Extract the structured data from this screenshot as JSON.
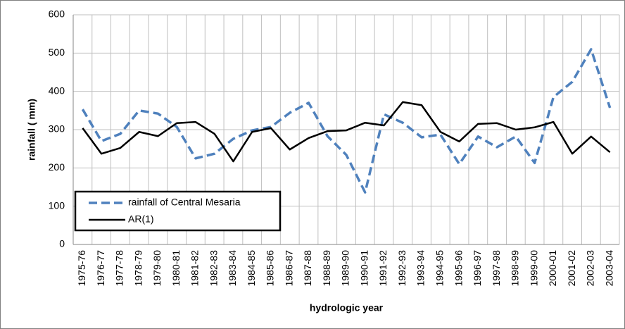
{
  "chart_data": {
    "type": "line",
    "x_label": "hydrologic year",
    "y_label": "rainfall ( mm)",
    "categories": [
      "1975-76",
      "1976-77",
      "1977-78",
      "1978-79",
      "1979-80",
      "1980-81",
      "1981-82",
      "1982-83",
      "1983-84",
      "1984-85",
      "1985-86",
      "1986-87",
      "1987-88",
      "1988-89",
      "1989-90",
      "1990-91",
      "1991-92",
      "1992-93",
      "1993-94",
      "1994-95",
      "1995-96",
      "1996-97",
      "1997-98",
      "1998-99",
      "1999-00",
      "2000-01",
      "2001-02",
      "2002-03",
      "2003-04"
    ],
    "series": [
      {
        "name": "rainfall of Central Mesaria",
        "color": "#4f81bd",
        "dashed": true,
        "values": [
          353,
          270,
          289,
          350,
          342,
          307,
          225,
          237,
          276,
          298,
          307,
          344,
          370,
          283,
          234,
          136,
          340,
          318,
          280,
          287,
          210,
          282,
          254,
          282,
          213,
          385,
          425,
          510,
          357
        ]
      },
      {
        "name": "AR(1)",
        "color": "#000000",
        "dashed": false,
        "values": [
          304,
          237,
          252,
          294,
          283,
          317,
          320,
          289,
          217,
          294,
          304,
          248,
          278,
          296,
          298,
          318,
          311,
          372,
          364,
          294,
          269,
          315,
          317,
          300,
          306,
          320,
          237,
          282,
          241
        ]
      }
    ],
    "ylim": [
      0,
      600
    ],
    "yticks": [
      0,
      100,
      200,
      300,
      400,
      500,
      600
    ],
    "grid": true
  }
}
